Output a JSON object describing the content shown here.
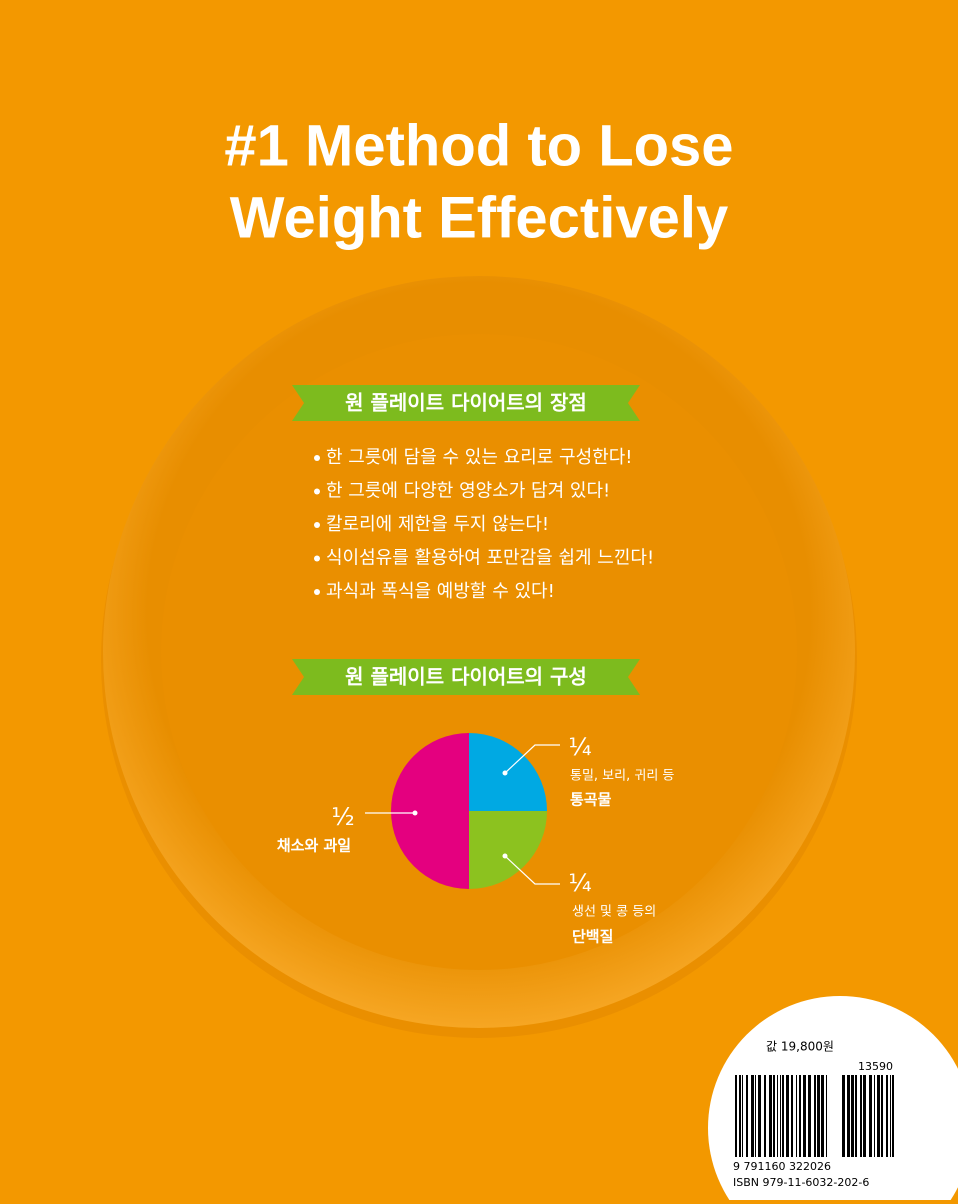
{
  "title": [
    "#1 Method to Lose",
    "Weight Effectively"
  ],
  "advantages": {
    "heading": "원 플레이트 다이어트의 장점",
    "items": [
      "한 그릇에 담을 수 있는 요리로 구성한다!",
      "한 그릇에 다양한 영양소가 담겨 있다!",
      "칼로리에 제한을 두지 않는다!",
      "식이섬유를 활용하여 포만감을 쉽게 느낀다!",
      "과식과 폭식을 예방할 수 있다!"
    ]
  },
  "composition_heading": "원 플레이트 다이어트의 구성",
  "chart_data": {
    "type": "pie",
    "categories": [
      "통곡물",
      "단백질",
      "채소와 과일"
    ],
    "notes": [
      "통밀, 보리, 귀리 등",
      "생선 및 콩 등의",
      null
    ],
    "values": [
      0.25,
      0.25,
      0.5
    ],
    "value_labels": [
      "¼",
      "¼",
      "½"
    ],
    "colors": [
      "#00a9e3",
      "#8cc21f",
      "#e4007f"
    ]
  },
  "price": "값 19,800원",
  "barcode": {
    "addon": "13590",
    "digits": "9 791160 322026",
    "isbn": "ISBN 979-11-6032-202-6"
  }
}
